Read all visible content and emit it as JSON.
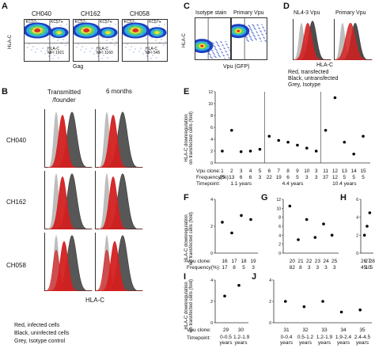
{
  "panels": {
    "A": {
      "letter": "A",
      "ylabel": "HLA-C",
      "xlabel": "Gag",
      "plots": [
        {
          "title": "CH040",
          "ul": "KC57-",
          "ur": "KC57+",
          "inner": "HLA-C\nMFI 1921"
        },
        {
          "title": "CH162",
          "ul": "KC57-",
          "ur": "KC57+",
          "inner": "HLA-C\nMFI 1160"
        },
        {
          "title": "CH058",
          "ul": "KC57-",
          "ur": "KC57+",
          "inner": "HLA-C\nMFI 545"
        }
      ]
    },
    "B": {
      "letter": "B",
      "col1": "Transmitted\n/founder",
      "col2": "6 months",
      "rows": [
        "CH040",
        "CH162",
        "CH058"
      ],
      "xlabel": "HLA-C",
      "legend": [
        "Red, infected cells",
        "Black, uninfected cells",
        "Grey, Isotype control"
      ]
    },
    "C": {
      "letter": "C",
      "ylabel": "HLA-C",
      "xlabel": "Vpu (GFP)",
      "t1": "Isotype stain",
      "t2": "Primary Vpu"
    },
    "D": {
      "letter": "D",
      "t1": "NL4-3 Vpu",
      "t2": "Primary Vpu",
      "xlabel": "HLA-C",
      "legend": [
        "Red, transfected",
        "Black, untransfected",
        "Grey, Isotype"
      ]
    },
    "E": {
      "letter": "E",
      "ylabel": "HLA-C downregulation\non transfected cells (fold)",
      "row_labels": [
        "Vpu clone:",
        "Frequency(%):",
        "Timepoint:"
      ],
      "groups": [
        {
          "timepoint": "1.1 years",
          "clones": [
            "1",
            "2",
            "3",
            "4",
            "5"
          ],
          "freq": [
            "25",
            "13",
            "6",
            "6",
            "3"
          ]
        },
        {
          "timepoint": "4.4 years",
          "clones": [
            "6",
            "7",
            "8",
            "9",
            "10",
            "3"
          ],
          "freq": [
            "22",
            "19",
            "6",
            "5",
            "3",
            "3"
          ]
        },
        {
          "timepoint": "10.4 years",
          "clones": [
            "11",
            "12",
            "13",
            "14",
            "15"
          ],
          "freq": [
            "37",
            "12",
            "5",
            "5",
            "5"
          ]
        }
      ]
    },
    "F": {
      "letter": "F",
      "ylabel": "HLA-C downregulation\non transfected cells (fold)",
      "clones": [
        "16",
        "17",
        "18",
        "19"
      ],
      "freq": [
        "17",
        "8",
        "5",
        "3"
      ],
      "row_labels": [
        "Vpu clone:",
        "Frequency(%):"
      ]
    },
    "G": {
      "letter": "G",
      "clones": [
        "20",
        "21",
        "22",
        "23",
        "24",
        "25"
      ],
      "freq": [
        "82",
        "8",
        "3",
        "3",
        "3",
        "3"
      ]
    },
    "H": {
      "letter": "H",
      "clones": [
        "26",
        "27",
        "28"
      ],
      "freq": [
        "45",
        "10",
        "5"
      ]
    },
    "I": {
      "letter": "I",
      "ylabel": "HLA-C downregulation\non transfected cells (fold)",
      "clones": [
        "29",
        "30"
      ],
      "tp": [
        "0-0.5\nyears",
        "1.2-1.9\nyears"
      ],
      "row_labels": [
        "Vpu clone:",
        "Timepoint:"
      ]
    },
    "J": {
      "letter": "J",
      "clones": [
        "31",
        "32",
        "33",
        "34",
        "35"
      ],
      "tp": [
        "0-0.4\nyears",
        "0.5-1.2\nyears",
        "1.2-1.9\nyears",
        "1.9-2.4\nyears",
        "2.4-4.5\nyears"
      ]
    }
  },
  "chart_data": [
    {
      "type": "scatter",
      "panel": "E",
      "x": [
        "1",
        "2",
        "3",
        "4",
        "5",
        "6",
        "7",
        "8",
        "9",
        "10",
        "3",
        "11",
        "12",
        "13",
        "14",
        "15"
      ],
      "y": [
        2.0,
        5.5,
        1.9,
        2.0,
        2.3,
        4.5,
        3.8,
        3.5,
        3.0,
        2.5,
        2.0,
        5.5,
        11.0,
        3.5,
        1.5,
        4.5
      ]
    },
    {
      "type": "scatter",
      "panel": "F",
      "x": [
        "16",
        "17",
        "18",
        "19"
      ],
      "y": [
        2.3,
        1.5,
        2.8,
        2.5
      ]
    },
    {
      "type": "scatter",
      "panel": "G",
      "x": [
        "20",
        "21",
        "22",
        "23",
        "24",
        "25"
      ],
      "y": [
        10.5,
        3.0,
        7.5,
        3.5,
        6.5,
        4.0
      ]
    },
    {
      "type": "scatter",
      "panel": "H",
      "x": [
        "26",
        "27",
        "28"
      ],
      "y": [
        2.0,
        3.0,
        4.5
      ]
    },
    {
      "type": "scatter",
      "panel": "I",
      "x": [
        "29",
        "30"
      ],
      "y": [
        2.5,
        3.5
      ]
    },
    {
      "type": "scatter",
      "panel": "J",
      "x": [
        "31",
        "32",
        "33",
        "34",
        "35"
      ],
      "y": [
        2.0,
        1.5,
        2.0,
        1.0,
        1.2
      ]
    }
  ],
  "colors": {
    "red": "#d42020",
    "dark": "#3a3a3a",
    "grey": "#bdbdbd",
    "blue": "#1f3fbf"
  }
}
